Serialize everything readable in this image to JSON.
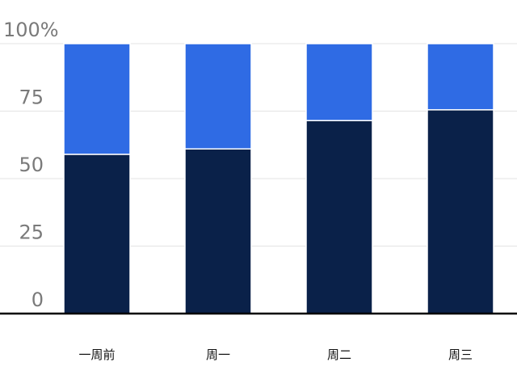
{
  "chart_data": {
    "type": "bar",
    "stacked": true,
    "normalized_percent": true,
    "categories": [
      "一周前",
      "周一",
      "周二",
      "周三"
    ],
    "series": [
      {
        "values": [
          59,
          61,
          71.5,
          75.5
        ],
        "color": "#0a2149"
      },
      {
        "values": [
          41,
          39,
          28.5,
          24.5
        ],
        "color": "#2f6be4"
      }
    ],
    "ylim": [
      0,
      100
    ],
    "yticks": [
      "0",
      "25",
      "50",
      "75",
      "100%"
    ],
    "grid": true,
    "legend": "none"
  }
}
